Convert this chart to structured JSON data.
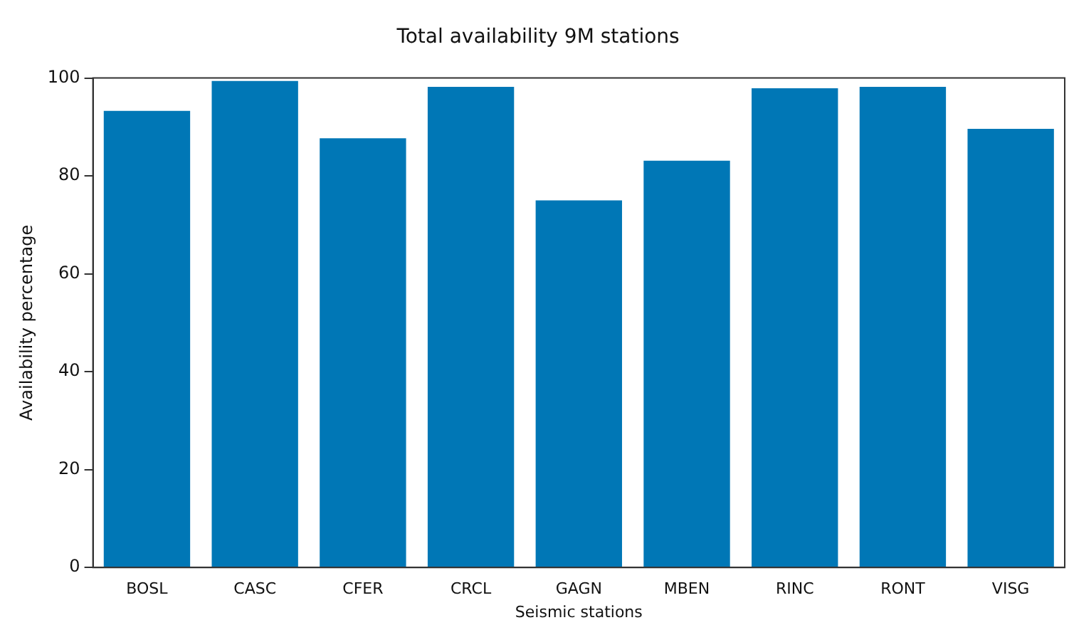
{
  "chart_data": {
    "type": "bar",
    "title": "Total availability 9M stations",
    "xlabel": "Seismic stations",
    "ylabel": "Availability percentage",
    "categories": [
      "BOSL",
      "CASC",
      "CFER",
      "CRCL",
      "GAGN",
      "MBEN",
      "RINC",
      "RONT",
      "VISG"
    ],
    "values": [
      93.3,
      99.4,
      87.7,
      98.2,
      75.0,
      83.1,
      97.9,
      98.2,
      89.6
    ],
    "color": "#0077b6",
    "ylim": [
      0,
      100
    ],
    "yticks": [
      0,
      20,
      40,
      60,
      80,
      100
    ],
    "grid": false,
    "legend": false
  }
}
